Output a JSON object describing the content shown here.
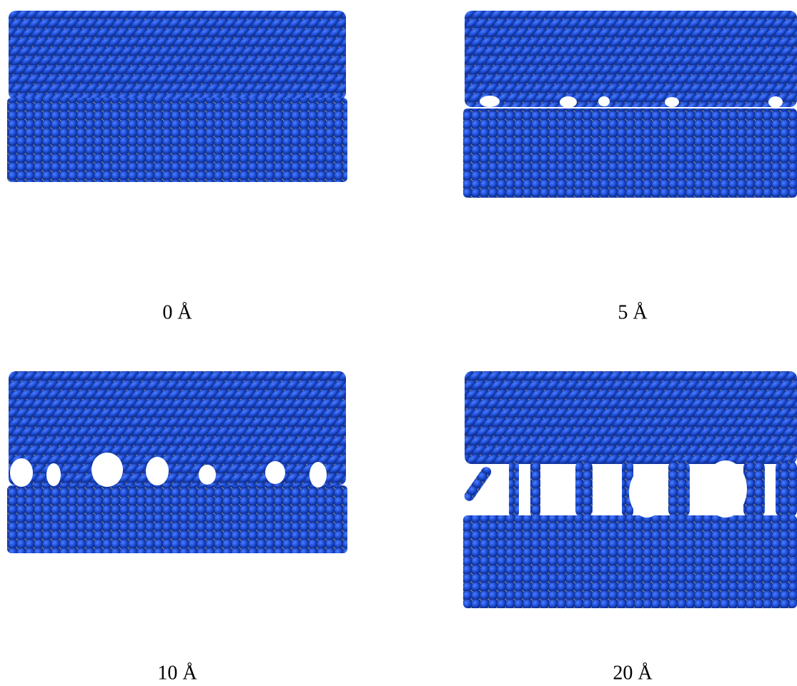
{
  "panels": [
    {
      "caption": "0 Å"
    },
    {
      "caption": "5 Å"
    },
    {
      "caption": "10 Å"
    },
    {
      "caption": "20 Å"
    }
  ]
}
